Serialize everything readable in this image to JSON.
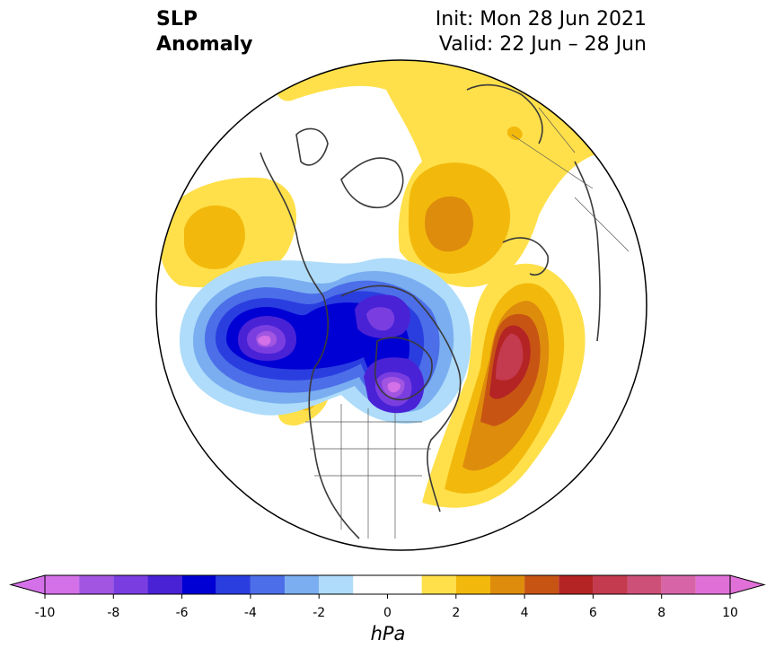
{
  "title": {
    "left_line1": "SLP",
    "left_line2": "Anomaly",
    "right_line1": "Init: Mon 28 Jun 2021",
    "right_line2": "Valid: 22 Jun – 28 Jun"
  },
  "colorbar": {
    "unit": "hPa",
    "ticks": [
      "-10",
      "-8",
      "-6",
      "-4",
      "-2",
      "0",
      "2",
      "4",
      "6",
      "8",
      "10"
    ],
    "levels": [
      -10,
      -9,
      -8,
      -7,
      -6,
      -5,
      -4,
      -3,
      -2,
      -1,
      1,
      2,
      3,
      4,
      5,
      6,
      7,
      8,
      9,
      10
    ],
    "colors": [
      "#d470e8",
      "#a155e0",
      "#7a3ee0",
      "#4a22d6",
      "#0000d4",
      "#2a3ee0",
      "#4c6ee8",
      "#7aaef0",
      "#aedcfa",
      "#ffffff",
      "#ffe04a",
      "#f2b90c",
      "#de8c0c",
      "#c85414",
      "#b42424",
      "#c43a4e",
      "#cc5078",
      "#d864a8",
      "#e070d8"
    ],
    "under_color": "#d470e8",
    "over_color": "#e070d8"
  },
  "map": {
    "projection": "north polar stereographic",
    "anomaly_centers": [
      {
        "name": "north-pacific-low",
        "value_hpa": -10,
        "sign": "negative"
      },
      {
        "name": "arctic-canada-low",
        "value_hpa": -9,
        "sign": "negative"
      },
      {
        "name": "hudson-bay-low",
        "value_hpa": -10,
        "sign": "negative"
      },
      {
        "name": "north-atlantic-high",
        "value_hpa": 7,
        "sign": "positive"
      },
      {
        "name": "siberia-high",
        "value_hpa": 4,
        "sign": "positive"
      },
      {
        "name": "bering-high",
        "value_hpa": 3,
        "sign": "positive"
      }
    ]
  }
}
